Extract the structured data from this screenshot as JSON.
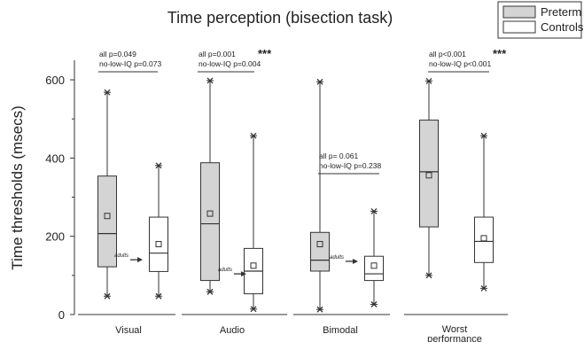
{
  "chart_data": {
    "type": "box",
    "title": "Time perception (bisection task)",
    "ylabel": "Time thresholds (msecs)",
    "ylim": [
      0,
      650
    ],
    "yticks": [
      0,
      200,
      400,
      600
    ],
    "grid": false,
    "legend_position": "top-right",
    "series": [
      {
        "name": "Preterm",
        "color": "#d4d4d4"
      },
      {
        "name": "Controls",
        "color": "#ffffff"
      }
    ],
    "categories": [
      "Visual",
      "Audio",
      "Bimodal",
      "Worst performance"
    ],
    "groups": [
      {
        "category": "Visual",
        "boxes": [
          {
            "series": "Preterm",
            "min": 47,
            "q1": 122,
            "median": 207,
            "q3": 354,
            "max": 568,
            "mean": 252,
            "outliers": [
              568,
              47
            ]
          },
          {
            "series": "Controls",
            "min": 47,
            "q1": 110,
            "median": 157,
            "q3": 249,
            "max": 381,
            "mean": 180,
            "outliers": [
              381,
              47
            ]
          }
        ],
        "adults": {
          "label": "adults",
          "value": 140
        },
        "stats": {
          "all": "all p=0.049",
          "no_low_iq": "no-low-IQ p=0.073",
          "stars": ""
        }
      },
      {
        "category": "Audio",
        "boxes": [
          {
            "series": "Preterm",
            "min": 58,
            "q1": 87,
            "median": 232,
            "q3": 388,
            "max": 598,
            "mean": 258,
            "outliers": [
              598,
              58
            ]
          },
          {
            "series": "Controls",
            "min": 14,
            "q1": 53,
            "median": 111,
            "q3": 169,
            "max": 457,
            "mean": 125,
            "outliers": [
              457,
              14
            ]
          }
        ],
        "adults": {
          "label": "adults",
          "value": 104
        },
        "stats": {
          "all": "all p=0.001",
          "no_low_iq": "no-low-IQ p=0.004",
          "stars": "***"
        }
      },
      {
        "category": "Bimodal",
        "boxes": [
          {
            "series": "Preterm",
            "min": 13,
            "q1": 111,
            "median": 139,
            "q3": 210,
            "max": 595,
            "mean": 180,
            "outliers": [
              595,
              13
            ]
          },
          {
            "series": "Controls",
            "min": 26,
            "q1": 87,
            "median": 104,
            "q3": 149,
            "max": 264,
            "mean": 125,
            "outliers": [
              264,
              26
            ]
          }
        ],
        "adults": {
          "label": "adults",
          "value": 136
        },
        "stats": {
          "all": "all p= 0.061",
          "no_low_iq": "no-low-IQ p=0.238",
          "stars": ""
        }
      },
      {
        "category": "Worst performance",
        "boxes": [
          {
            "series": "Preterm",
            "min": 100,
            "q1": 224,
            "median": 365,
            "q3": 497,
            "max": 597,
            "mean": 356,
            "outliers": [
              597,
              100
            ]
          },
          {
            "series": "Controls",
            "min": 67,
            "q1": 133,
            "median": 187,
            "q3": 249,
            "max": 457,
            "mean": 195,
            "outliers": [
              457,
              67
            ]
          }
        ],
        "adults": null,
        "stats": {
          "all": "all p<0.001",
          "no_low_iq": "no-low-IQ p<0.001",
          "stars": "***"
        }
      }
    ]
  }
}
